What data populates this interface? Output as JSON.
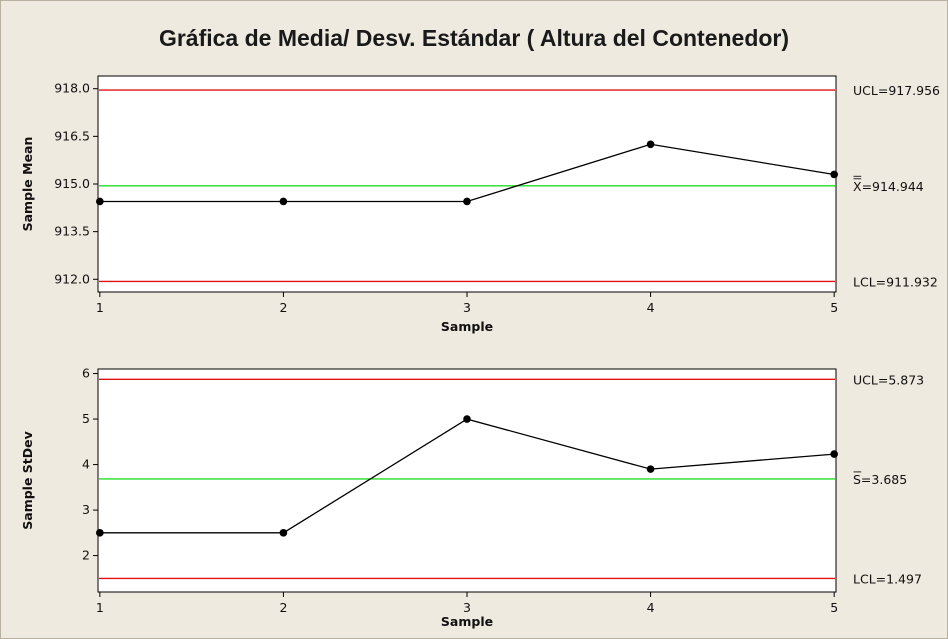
{
  "title": "Gráfica de Media/ Desv. Estándar ( Altura del Contenedor)",
  "colors": {
    "limit_line": "#e01010",
    "center_line": "#22dd22",
    "series": "#000000",
    "plot_bg": "#ffffff",
    "frame_bg": "#efeae0"
  },
  "chart_data": [
    {
      "type": "line",
      "xlabel": "Sample",
      "ylabel": "Sample Mean",
      "x": [
        1,
        2,
        3,
        4,
        5
      ],
      "y": [
        914.45,
        914.45,
        914.45,
        916.25,
        915.3
      ],
      "xlim": [
        0.99,
        5.01
      ],
      "ylim": [
        911.6,
        918.4
      ],
      "yticks": [
        912.0,
        913.5,
        915.0,
        916.5,
        918.0
      ],
      "yticklabels": [
        "912.0",
        "913.5",
        "915.0",
        "916.5",
        "918.0"
      ],
      "xticks": [
        1,
        2,
        3,
        4,
        5
      ],
      "xticklabels": [
        "1",
        "2",
        "3",
        "4",
        "5"
      ],
      "limits": [
        {
          "kind": "ucl",
          "value": 917.956,
          "label": "UCL=917.956"
        },
        {
          "kind": "center",
          "value": 914.944,
          "label": "X=914.944",
          "label_overline": "double"
        },
        {
          "kind": "lcl",
          "value": 911.932,
          "label": "LCL=911.932"
        }
      ]
    },
    {
      "type": "line",
      "xlabel": "Sample",
      "ylabel": "Sample StDev",
      "x": [
        1,
        2,
        3,
        4,
        5
      ],
      "y": [
        2.5,
        2.5,
        5.0,
        3.9,
        4.23
      ],
      "xlim": [
        0.99,
        5.01
      ],
      "ylim": [
        1.2,
        6.1
      ],
      "yticks": [
        2,
        3,
        4,
        5,
        6
      ],
      "yticklabels": [
        "2",
        "3",
        "4",
        "5",
        "6"
      ],
      "xticks": [
        1,
        2,
        3,
        4,
        5
      ],
      "xticklabels": [
        "1",
        "2",
        "3",
        "4",
        "5"
      ],
      "limits": [
        {
          "kind": "ucl",
          "value": 5.873,
          "label": "UCL=5.873"
        },
        {
          "kind": "center",
          "value": 3.685,
          "label": "S=3.685",
          "label_overline": "single"
        },
        {
          "kind": "lcl",
          "value": 1.497,
          "label": "LCL=1.497"
        }
      ]
    }
  ]
}
